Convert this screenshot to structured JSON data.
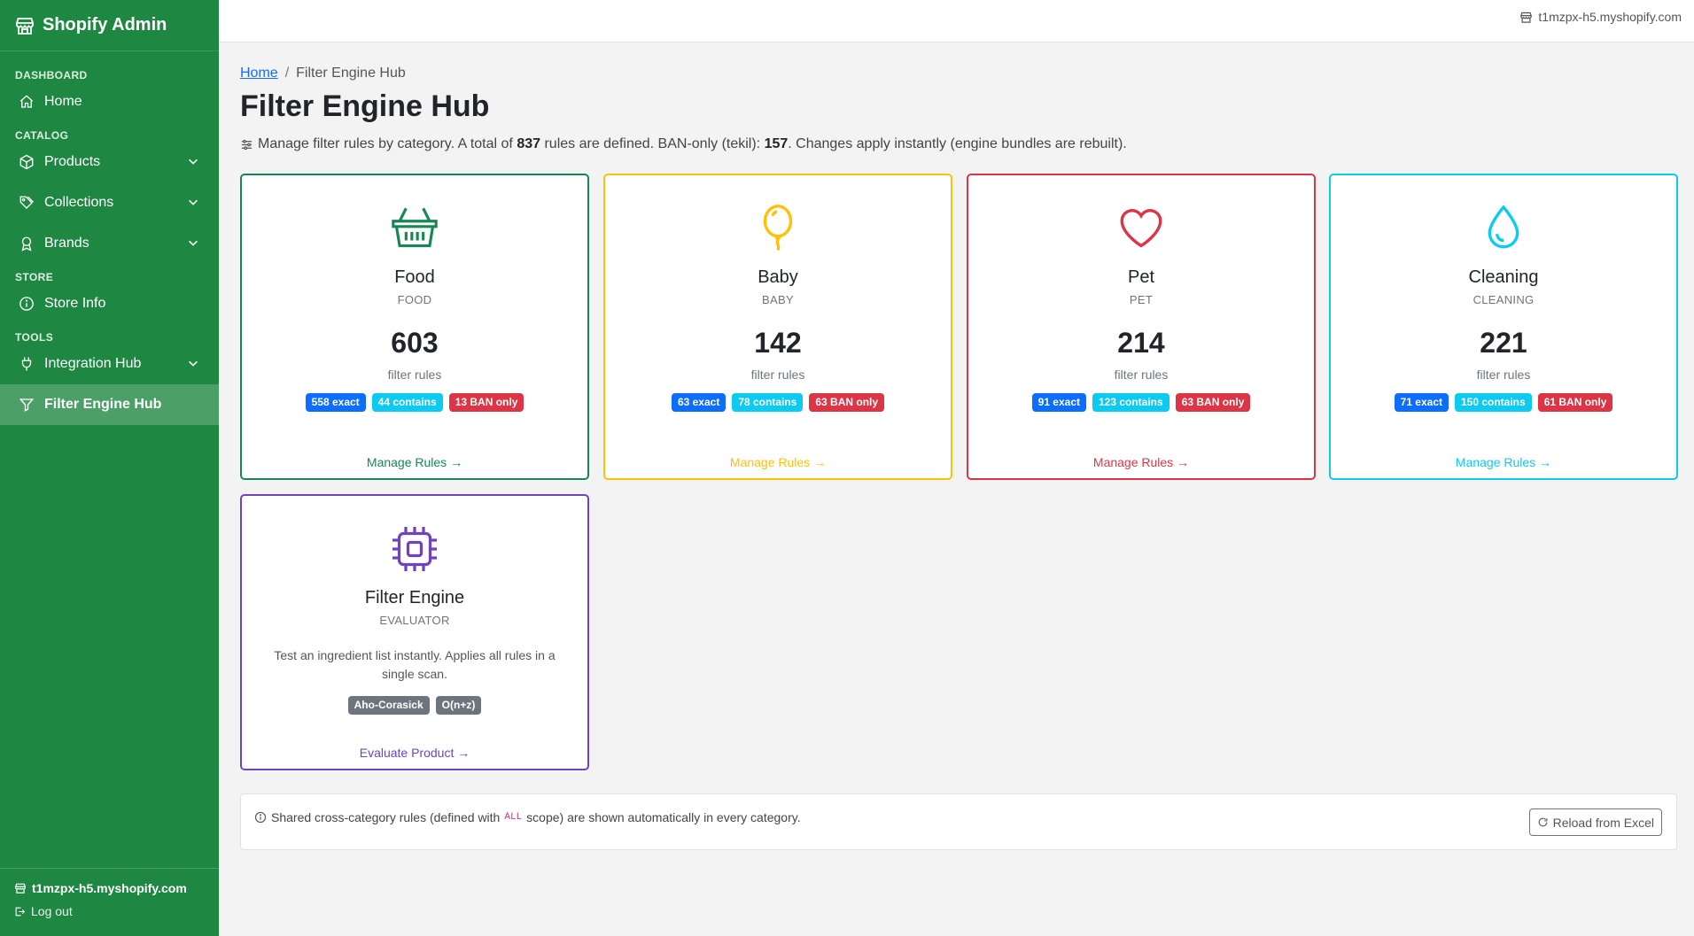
{
  "app": {
    "title": "Shopify Admin"
  },
  "topbar": {
    "shop": "t1mzpx-h5.myshopify.com"
  },
  "sidebar": {
    "sections": {
      "dashboard": "DASHBOARD",
      "catalog": "CATALOG",
      "store": "STORE",
      "tools": "TOOLS"
    },
    "items": {
      "home": "Home",
      "products": "Products",
      "collections": "Collections",
      "brands": "Brands",
      "store_info": "Store Info",
      "integration_hub": "Integration Hub",
      "filter_engine_hub": "Filter Engine Hub"
    },
    "footer": {
      "store": "t1mzpx-h5.myshopify.com",
      "logout": "Log out"
    }
  },
  "breadcrumb": {
    "home": "Home",
    "sep": "/",
    "current": "Filter Engine Hub"
  },
  "page": {
    "title": "Filter Engine Hub",
    "desc_1": "Manage filter rules by category. A total of ",
    "total": "837",
    "desc_2": " rules are defined. BAN-only (tekil): ",
    "ban_only": "157",
    "desc_3": ". Changes apply instantly (engine bundles are rebuilt)."
  },
  "categories": [
    {
      "name": "Food",
      "code": "FOOD",
      "count": "603",
      "count_label": "filter rules",
      "exact": "558 exact",
      "contains": "44 contains",
      "ban": "13 BAN only",
      "action": "Manage Rules →",
      "color": "#198754",
      "icon": "basket-icon"
    },
    {
      "name": "Baby",
      "code": "BABY",
      "count": "142",
      "count_label": "filter rules",
      "exact": "63 exact",
      "contains": "78 contains",
      "ban": "63 BAN only",
      "action": "Manage Rules →",
      "color": "#ffc107",
      "icon": "balloon-icon"
    },
    {
      "name": "Pet",
      "code": "PET",
      "count": "214",
      "count_label": "filter rules",
      "exact": "91 exact",
      "contains": "123 contains",
      "ban": "63 BAN only",
      "action": "Manage Rules →",
      "color": "#dc3545",
      "icon": "heart-icon"
    },
    {
      "name": "Cleaning",
      "code": "CLEANING",
      "count": "221",
      "count_label": "filter rules",
      "exact": "71 exact",
      "contains": "150 contains",
      "ban": "61 BAN only",
      "action": "Manage Rules →",
      "color": "#0dcaf0",
      "icon": "droplet-icon"
    }
  ],
  "evaluator": {
    "name": "Filter Engine",
    "code": "EVALUATOR",
    "desc": "Test an ingredient list instantly. Applies all rules in a single scan.",
    "badge_1": "Aho-Corasick",
    "badge_2": "O(n+z)",
    "action": "Evaluate Product →",
    "color": "#6f42c1",
    "icon": "cpu-icon"
  },
  "info": {
    "msg_1": "Shared cross-category rules (defined with",
    "code": "ALL",
    "msg_2": "scope) are shown automatically in every category.",
    "reload": "Reload from Excel"
  }
}
